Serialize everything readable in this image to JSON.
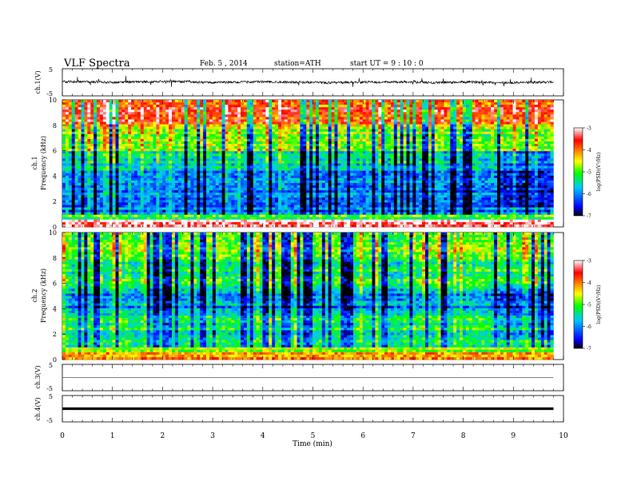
{
  "header": {
    "title": "VLF  Spectra",
    "date": "Feb. 5  , 2014",
    "station": "station=ATH",
    "start": "start  UT  =   9  : 10 : 0"
  },
  "chart_data": [
    {
      "type": "line",
      "name": "ch1_waveform",
      "ylabel": "ch.1(V)",
      "ylim": [
        -5,
        5
      ],
      "yticks": [
        "5",
        "-5"
      ],
      "xlim": [
        0,
        10
      ],
      "description_level": "noisy signal centered near 0 V with spikes up to about +/-2 V",
      "baseline_profile": [
        0.3,
        0.2,
        0.0,
        0.1,
        0.3,
        0.2,
        -0.1,
        0.0,
        0.2,
        0.1,
        0.0,
        -0.2,
        0.1,
        0.0,
        0.2,
        -0.1,
        0.0,
        0.1,
        -0.2,
        0.0,
        0.1
      ],
      "data_end": 9.8
    },
    {
      "type": "heatmap",
      "name": "ch1_spectrogram",
      "ylabel": "ch.1\nFrequency  (kHz)",
      "ylim": [
        0,
        10
      ],
      "yticks": [
        "0",
        "2",
        "4",
        "6",
        "8",
        "10"
      ],
      "xlim": [
        0,
        10
      ],
      "data_end": 9.8,
      "colorbar": {
        "label": "log(PSD)(V²/Hz)",
        "range": [
          -7,
          -3
        ],
        "ticks": [
          "-3",
          "-4",
          "-5",
          "-6",
          "-7"
        ]
      },
      "band_profile_logpsd": [
        {
          "f_range": [
            0.0,
            0.5
          ],
          "level": -3.2
        },
        {
          "f_range": [
            0.5,
            1.0
          ],
          "level": -5.2
        },
        {
          "f_range": [
            1.0,
            2.0
          ],
          "level": -6.1
        },
        {
          "f_range": [
            2.0,
            4.5
          ],
          "level": -6.0
        },
        {
          "f_range": [
            4.5,
            6.0
          ],
          "level": -5.5
        },
        {
          "f_range": [
            6.0,
            8.0
          ],
          "level": -4.8
        },
        {
          "f_range": [
            8.0,
            10.0
          ],
          "level": -3.7
        }
      ]
    },
    {
      "type": "heatmap",
      "name": "ch2_spectrogram",
      "ylabel": "ch.2\nFrequency  (kHz)",
      "ylim": [
        0,
        10
      ],
      "yticks": [
        "0",
        "2",
        "4",
        "6",
        "8",
        "10"
      ],
      "xlim": [
        0,
        10
      ],
      "data_end": 9.8,
      "colorbar": {
        "label": "log(PSD)(V²/Hz)",
        "range": [
          -7,
          -3
        ],
        "ticks": [
          "-3",
          "-4",
          "-5",
          "-6",
          "-7"
        ]
      },
      "band_profile_logpsd": [
        {
          "f_range": [
            0.0,
            0.5
          ],
          "level": -4.2
        },
        {
          "f_range": [
            0.5,
            1.0
          ],
          "level": -4.8
        },
        {
          "f_range": [
            1.0,
            2.5
          ],
          "level": -5.3
        },
        {
          "f_range": [
            2.5,
            4.0
          ],
          "level": -5.4
        },
        {
          "f_range": [
            4.0,
            5.5
          ],
          "level": -5.9
        },
        {
          "f_range": [
            5.5,
            8.0
          ],
          "level": -5.2
        },
        {
          "f_range": [
            8.0,
            10.0
          ],
          "level": -4.9
        }
      ]
    },
    {
      "type": "line",
      "name": "ch3_waveform",
      "ylabel": "ch.3(V)",
      "ylim": [
        -5,
        5
      ],
      "yticks": [
        "5",
        "-5"
      ],
      "xlim": [
        0,
        10
      ],
      "data_end": 9.8,
      "level": 0.0
    },
    {
      "type": "line",
      "name": "ch4_waveform",
      "ylabel": "ch.4(V)",
      "ylim": [
        -5,
        5
      ],
      "yticks": [
        "5",
        "-5"
      ],
      "xlim": [
        0,
        10
      ],
      "data_end": 9.8,
      "level": 0.0
    }
  ],
  "x_axis": {
    "label": "Time  (min)",
    "ticks": [
      "0",
      "1",
      "2",
      "3",
      "4",
      "5",
      "6",
      "7",
      "8",
      "9",
      "10"
    ]
  },
  "colors": {
    "colormap": [
      "#000000",
      "#0000ff",
      "#00c8ff",
      "#00ff00",
      "#ffff00",
      "#ff8000",
      "#ff0000",
      "#ffffff"
    ]
  }
}
